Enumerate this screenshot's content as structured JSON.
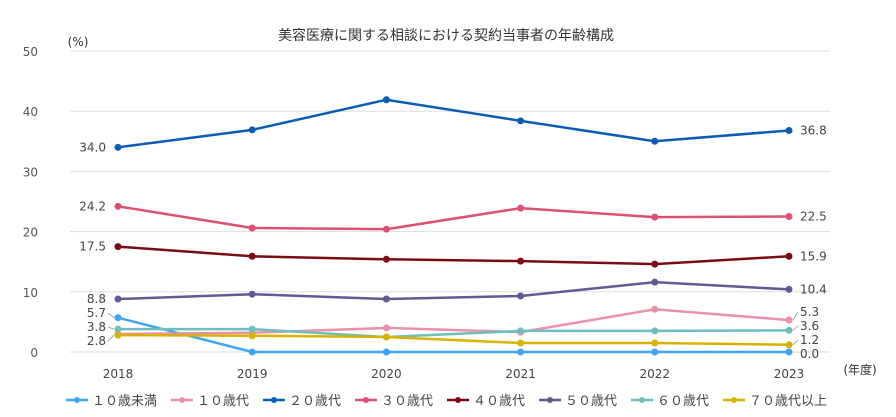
{
  "chart_data": {
    "type": "line",
    "title": "美容医療に関する相談における契約当事者の年齢構成",
    "ylabel": "(%)",
    "xlabel": "(年度)",
    "ylim": [
      0,
      50
    ],
    "yticks": [
      0,
      10,
      20,
      30,
      40,
      50
    ],
    "categories": [
      "2018",
      "2019",
      "2020",
      "2021",
      "2022",
      "2023"
    ],
    "grid": true,
    "legend": "bottom",
    "series": [
      {
        "name": "１０歳未満",
        "color": "#3fa4f4",
        "values": [
          5.7,
          0.0,
          0.0,
          0.0,
          0.0,
          0.0
        ],
        "first_label": "5.7",
        "last_label": "0.0"
      },
      {
        "name": "１０歳代",
        "color": "#e991a8",
        "values": [
          3.0,
          3.2,
          4.0,
          3.3,
          7.1,
          5.3
        ],
        "first_label": "",
        "last_label": "5.3"
      },
      {
        "name": "２０歳代",
        "color": "#0b5db3",
        "values": [
          34.0,
          36.9,
          41.9,
          38.4,
          35.0,
          36.8
        ],
        "first_label": "34.0",
        "last_label": "36.8"
      },
      {
        "name": "３０歳代",
        "color": "#de4f73",
        "values": [
          24.2,
          20.6,
          20.4,
          23.9,
          22.4,
          22.5
        ],
        "first_label": "24.2",
        "last_label": "22.5"
      },
      {
        "name": "４０歳代",
        "color": "#7a0c14",
        "values": [
          17.5,
          15.9,
          15.4,
          15.1,
          14.6,
          15.9
        ],
        "first_label": "17.5",
        "last_label": "15.9"
      },
      {
        "name": "５０歳代",
        "color": "#625a92",
        "values": [
          8.8,
          9.6,
          8.8,
          9.3,
          11.6,
          10.4
        ],
        "first_label": "8.8",
        "last_label": "10.4"
      },
      {
        "name": "６０歳代",
        "color": "#6dbfbd",
        "values": [
          3.8,
          3.8,
          2.5,
          3.5,
          3.5,
          3.6
        ],
        "first_label": "3.8",
        "last_label": "3.6"
      },
      {
        "name": "７０歳代以上",
        "color": "#d9b100",
        "values": [
          2.8,
          2.7,
          2.5,
          1.5,
          1.5,
          1.2
        ],
        "first_label": "2.8",
        "last_label": "1.2"
      }
    ]
  }
}
